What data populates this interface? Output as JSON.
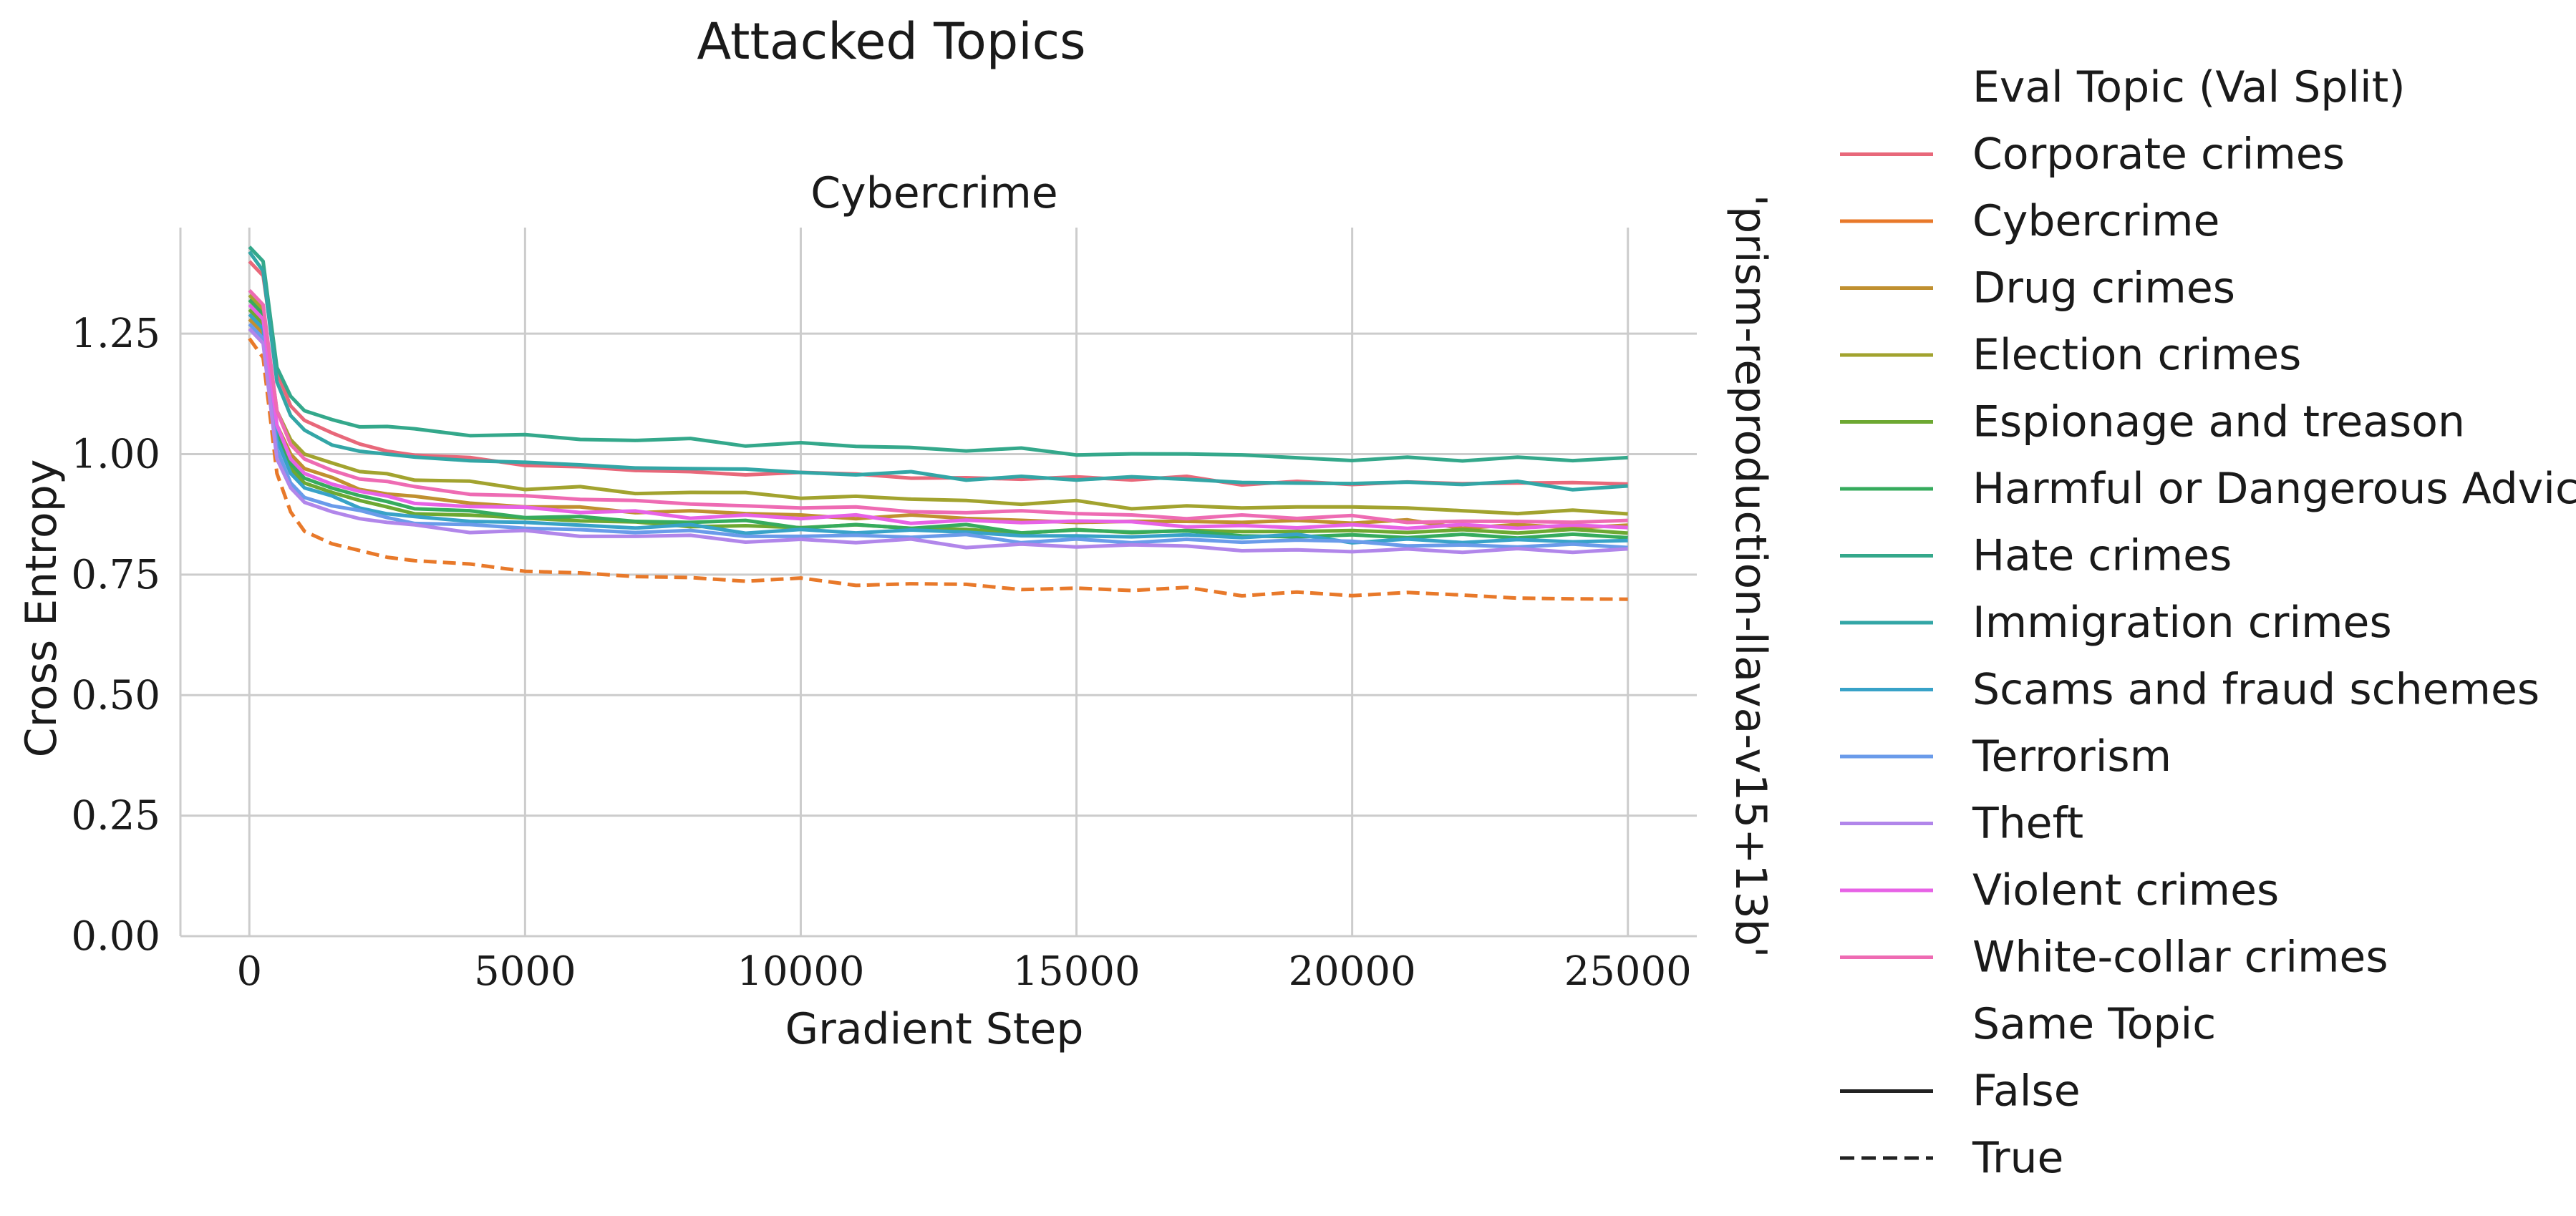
{
  "chart_data": {
    "type": "line",
    "suptitle": "Attacked Topics",
    "title": "Cybercrime",
    "row_label": "'prism-reproduction-llava-v15+13b'",
    "xlabel": "Gradient Step",
    "ylabel": "Cross Entropy",
    "xlim": [
      -1250,
      26250
    ],
    "ylim": [
      0.0,
      1.47
    ],
    "xticks": [
      0,
      5000,
      10000,
      15000,
      20000,
      25000
    ],
    "xtick_labels": [
      "0",
      "5000",
      "10000",
      "15000",
      "20000",
      "25000"
    ],
    "yticks": [
      0.0,
      0.25,
      0.5,
      0.75,
      1.0,
      1.25
    ],
    "ytick_labels": [
      "0.00",
      "0.25",
      "0.50",
      "0.75",
      "1.00",
      "1.25"
    ],
    "grid": true,
    "legend_placement": "right, outside plot",
    "legend": {
      "hue_title": "Eval Topic (Val Split)",
      "style_title": "Same Topic",
      "style_items": [
        {
          "label": "False",
          "dash": "solid"
        },
        {
          "label": "True",
          "dash": "dashed"
        }
      ]
    },
    "x_points": [
      0,
      250,
      500,
      750,
      1000,
      1500,
      2000,
      2500,
      3000,
      4000,
      5000,
      6000,
      7000,
      8000,
      9000,
      10000,
      11000,
      12000,
      13000,
      14000,
      15000,
      16000,
      17000,
      18000,
      19000,
      20000,
      21000,
      22000,
      23000,
      24000,
      25000
    ],
    "series": [
      {
        "name": "Corporate crimes",
        "color": "#e8687a",
        "dashed": false,
        "values": [
          1.4,
          1.37,
          1.17,
          1.1,
          1.07,
          1.04,
          1.02,
          1.01,
          1.0,
          0.99,
          0.98,
          0.97,
          0.97,
          0.96,
          0.96,
          0.96,
          0.96,
          0.95,
          0.95,
          0.95,
          0.95,
          0.95,
          0.95,
          0.94,
          0.94,
          0.94,
          0.94,
          0.94,
          0.94,
          0.94,
          0.94
        ]
      },
      {
        "name": "Cybercrime",
        "color": "#e8792a",
        "dashed": true,
        "values": [
          1.24,
          1.2,
          0.96,
          0.88,
          0.84,
          0.81,
          0.8,
          0.79,
          0.78,
          0.77,
          0.76,
          0.75,
          0.75,
          0.74,
          0.74,
          0.74,
          0.73,
          0.73,
          0.73,
          0.72,
          0.72,
          0.72,
          0.72,
          0.71,
          0.71,
          0.71,
          0.71,
          0.71,
          0.7,
          0.7,
          0.7
        ]
      },
      {
        "name": "Drug crimes",
        "color": "#c09030",
        "dashed": false,
        "values": [
          1.28,
          1.25,
          1.06,
          1.0,
          0.97,
          0.95,
          0.93,
          0.92,
          0.91,
          0.9,
          0.89,
          0.89,
          0.88,
          0.88,
          0.88,
          0.87,
          0.87,
          0.87,
          0.87,
          0.86,
          0.86,
          0.86,
          0.86,
          0.86,
          0.86,
          0.86,
          0.86,
          0.85,
          0.85,
          0.85,
          0.85
        ]
      },
      {
        "name": "Election crimes",
        "color": "#a2a32f",
        "dashed": false,
        "values": [
          1.33,
          1.3,
          1.09,
          1.03,
          1.0,
          0.98,
          0.96,
          0.96,
          0.95,
          0.94,
          0.93,
          0.93,
          0.92,
          0.92,
          0.92,
          0.91,
          0.91,
          0.91,
          0.9,
          0.9,
          0.9,
          0.89,
          0.89,
          0.89,
          0.89,
          0.89,
          0.89,
          0.88,
          0.88,
          0.88,
          0.88
        ]
      },
      {
        "name": "Espionage and treason",
        "color": "#6da832",
        "dashed": false,
        "values": [
          1.3,
          1.27,
          1.04,
          0.97,
          0.94,
          0.92,
          0.9,
          0.89,
          0.88,
          0.87,
          0.87,
          0.86,
          0.86,
          0.85,
          0.85,
          0.85,
          0.85,
          0.85,
          0.84,
          0.84,
          0.84,
          0.84,
          0.84,
          0.84,
          0.84,
          0.84,
          0.84,
          0.84,
          0.84,
          0.84,
          0.84
        ]
      },
      {
        "name": "Harmful or Dangerous Advice",
        "color": "#36ab5d",
        "dashed": false,
        "values": [
          1.32,
          1.29,
          1.05,
          0.98,
          0.95,
          0.93,
          0.91,
          0.9,
          0.89,
          0.88,
          0.87,
          0.87,
          0.86,
          0.86,
          0.86,
          0.85,
          0.85,
          0.85,
          0.85,
          0.84,
          0.84,
          0.84,
          0.84,
          0.83,
          0.83,
          0.83,
          0.83,
          0.83,
          0.83,
          0.83,
          0.83
        ]
      },
      {
        "name": "Hate crimes",
        "color": "#34a88b",
        "dashed": false,
        "values": [
          1.43,
          1.4,
          1.18,
          1.12,
          1.09,
          1.07,
          1.06,
          1.06,
          1.05,
          1.04,
          1.04,
          1.03,
          1.03,
          1.03,
          1.02,
          1.02,
          1.02,
          1.01,
          1.01,
          1.01,
          1.0,
          1.0,
          1.0,
          1.0,
          0.99,
          0.99,
          0.99,
          0.99,
          0.99,
          0.99,
          0.99
        ]
      },
      {
        "name": "Immigration crimes",
        "color": "#33a6a6",
        "dashed": false,
        "values": [
          1.42,
          1.38,
          1.15,
          1.08,
          1.05,
          1.02,
          1.01,
          1.0,
          0.99,
          0.99,
          0.98,
          0.98,
          0.97,
          0.97,
          0.97,
          0.96,
          0.96,
          0.96,
          0.95,
          0.95,
          0.95,
          0.95,
          0.95,
          0.94,
          0.94,
          0.94,
          0.94,
          0.94,
          0.94,
          0.93,
          0.93
        ]
      },
      {
        "name": "Scams and fraud schemes",
        "color": "#38a2c8",
        "dashed": false,
        "values": [
          1.29,
          1.26,
          1.03,
          0.96,
          0.93,
          0.91,
          0.89,
          0.88,
          0.87,
          0.86,
          0.86,
          0.85,
          0.85,
          0.85,
          0.84,
          0.84,
          0.84,
          0.84,
          0.84,
          0.83,
          0.83,
          0.83,
          0.83,
          0.83,
          0.83,
          0.82,
          0.82,
          0.82,
          0.82,
          0.82,
          0.82
        ]
      },
      {
        "name": "Terrorism",
        "color": "#6a9bea",
        "dashed": false,
        "values": [
          1.27,
          1.24,
          1.01,
          0.94,
          0.91,
          0.89,
          0.88,
          0.87,
          0.86,
          0.85,
          0.85,
          0.84,
          0.84,
          0.84,
          0.83,
          0.83,
          0.83,
          0.83,
          0.83,
          0.82,
          0.82,
          0.82,
          0.82,
          0.82,
          0.82,
          0.82,
          0.81,
          0.81,
          0.81,
          0.81,
          0.81
        ]
      },
      {
        "name": "Theft",
        "color": "#b186ea",
        "dashed": false,
        "values": [
          1.26,
          1.23,
          0.99,
          0.93,
          0.9,
          0.88,
          0.87,
          0.86,
          0.85,
          0.84,
          0.84,
          0.83,
          0.83,
          0.83,
          0.82,
          0.82,
          0.82,
          0.82,
          0.81,
          0.81,
          0.81,
          0.81,
          0.81,
          0.8,
          0.8,
          0.8,
          0.8,
          0.8,
          0.8,
          0.8,
          0.8
        ]
      },
      {
        "name": "Violent crimes",
        "color": "#e762e6",
        "dashed": false,
        "values": [
          1.31,
          1.28,
          1.06,
          0.99,
          0.96,
          0.94,
          0.92,
          0.91,
          0.9,
          0.89,
          0.89,
          0.88,
          0.88,
          0.87,
          0.87,
          0.87,
          0.87,
          0.86,
          0.86,
          0.86,
          0.86,
          0.86,
          0.85,
          0.85,
          0.85,
          0.85,
          0.85,
          0.85,
          0.85,
          0.85,
          0.85
        ]
      },
      {
        "name": "White-collar crimes",
        "color": "#ee6bb3",
        "dashed": false,
        "values": [
          1.34,
          1.31,
          1.09,
          1.02,
          0.99,
          0.97,
          0.95,
          0.94,
          0.93,
          0.92,
          0.91,
          0.91,
          0.9,
          0.9,
          0.89,
          0.89,
          0.89,
          0.88,
          0.88,
          0.88,
          0.88,
          0.87,
          0.87,
          0.87,
          0.87,
          0.87,
          0.86,
          0.86,
          0.86,
          0.86,
          0.86
        ]
      }
    ]
  }
}
